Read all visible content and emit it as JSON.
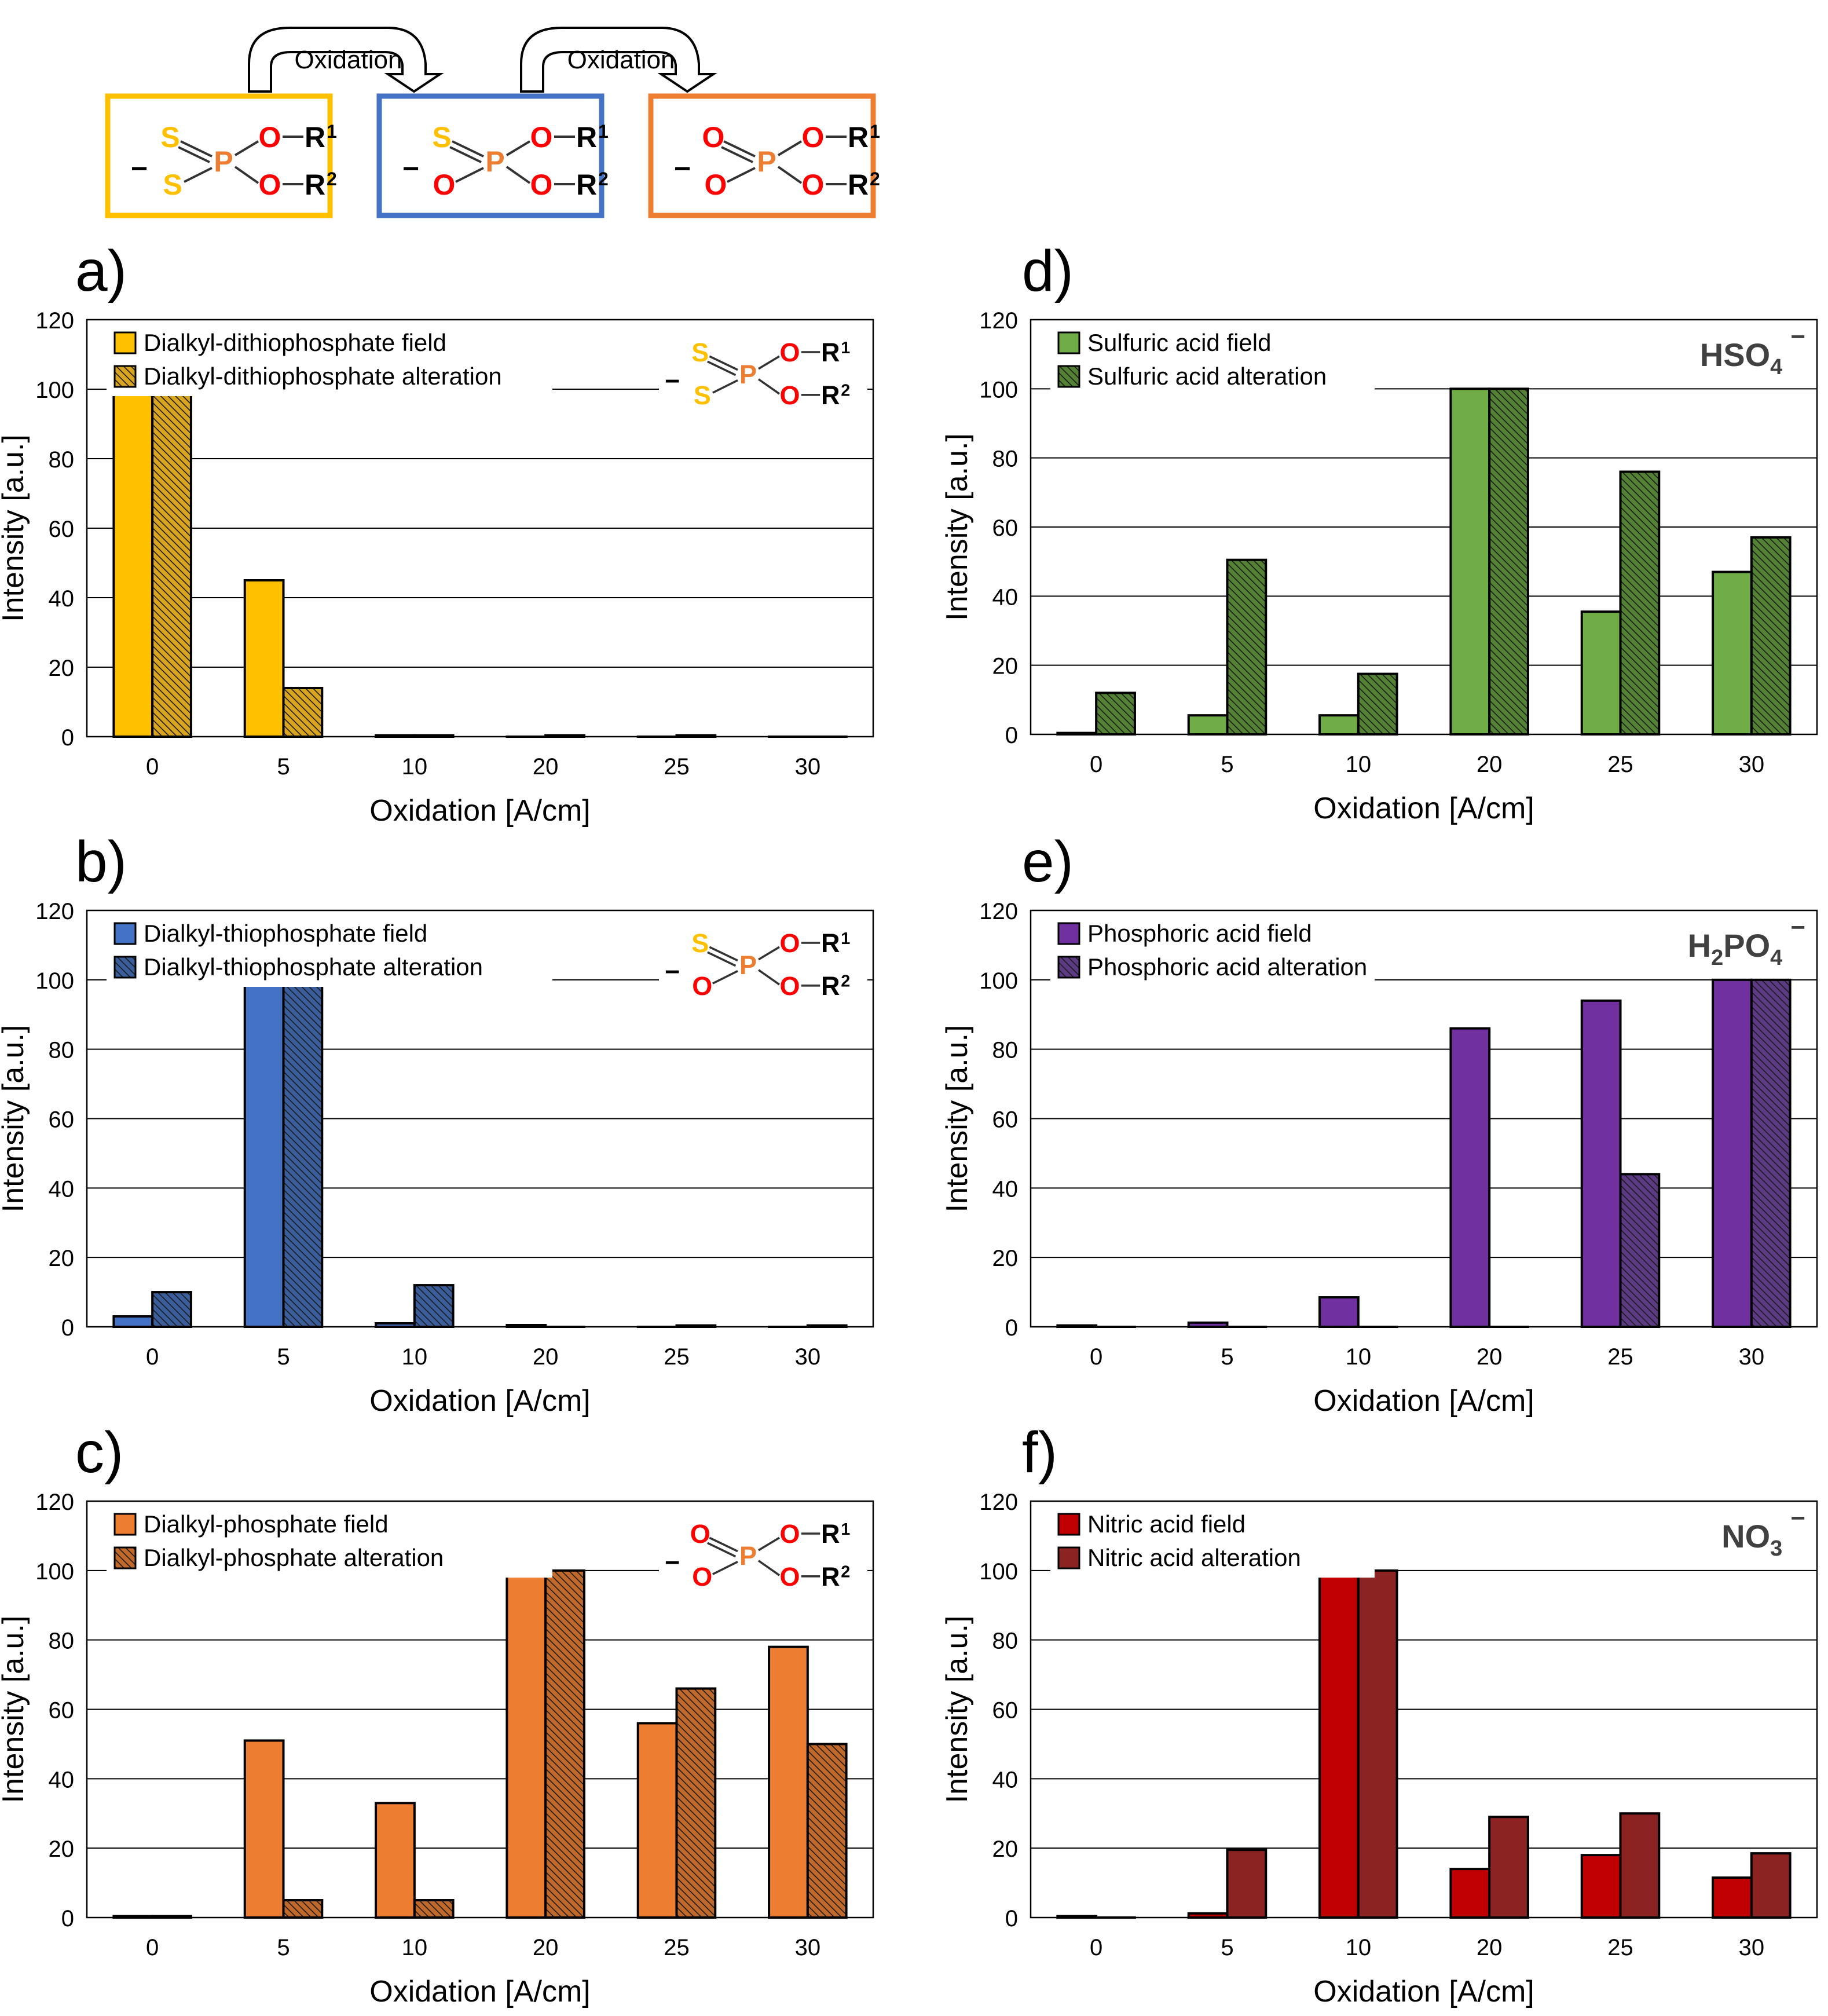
{
  "scheme": {
    "arrow_label_1": "Oxidation",
    "arrow_label_2": "Oxidation",
    "molecules": [
      {
        "border_color": "#FFC000",
        "top_atom": "S",
        "top_color": "#FFC000",
        "bottom_atom": "S",
        "bottom_color": "#FFC000",
        "charge": "−",
        "r1": "R",
        "r1_sup": "1",
        "r2": "R",
        "r2_sup": "2",
        "center": "P",
        "oxygen": "O"
      },
      {
        "border_color": "#4472C4",
        "top_atom": "S",
        "top_color": "#FFC000",
        "bottom_atom": "O",
        "bottom_color": "#FF0000",
        "charge": "−",
        "r1": "R",
        "r1_sup": "1",
        "r2": "R",
        "r2_sup": "2",
        "center": "P",
        "oxygen": "O"
      },
      {
        "border_color": "#ED7D31",
        "top_atom": "O",
        "top_color": "#FF0000",
        "bottom_atom": "O",
        "bottom_color": "#FF0000",
        "charge": "−",
        "r1": "R",
        "r1_sup": "1",
        "r2": "R",
        "r2_sup": "2",
        "center": "P",
        "oxygen": "O"
      }
    ]
  },
  "colors": {
    "phosphorus": "#ED7D31",
    "oxygen": "#FF0000",
    "sulfur": "#FFC000",
    "ion_label": "#404040"
  },
  "chart_data": [
    {
      "panel": "a)",
      "type": "bar",
      "categories": [
        "0",
        "5",
        "10",
        "20",
        "25",
        "30"
      ],
      "series": [
        {
          "name": "Dialkyl-dithiophosphate field",
          "values": [
            100,
            45,
            0.4,
            0,
            0,
            0
          ],
          "color": "#FFC000",
          "hatch": false
        },
        {
          "name": "Dialkyl-dithiophosphate alteration",
          "values": [
            100,
            14,
            0.4,
            0.4,
            0.4,
            0
          ],
          "color": "#D9A520",
          "hatch": true
        }
      ],
      "xlabel": "Oxidation [A/cm]",
      "ylabel": "Intensity [a.u.]",
      "ylim": [
        0,
        120
      ],
      "yticks": [
        "0",
        "20",
        "40",
        "60",
        "80",
        "100",
        "120"
      ],
      "inset": {
        "kind": "molecule",
        "molecule_index": 0
      }
    },
    {
      "panel": "b)",
      "type": "bar",
      "categories": [
        "0",
        "5",
        "10",
        "20",
        "25",
        "30"
      ],
      "series": [
        {
          "name": "Dialkyl-thiophosphate field",
          "values": [
            3,
            100,
            1,
            0.5,
            0,
            0
          ],
          "color": "#4472C4",
          "hatch": false
        },
        {
          "name": "Dialkyl-thiophosphate alteration",
          "values": [
            10,
            100,
            12,
            0,
            0.4,
            0.4
          ],
          "color": "#3A5E9C",
          "hatch": true
        }
      ],
      "xlabel": "Oxidation [A/cm]",
      "ylabel": "Intensity [a.u.]",
      "ylim": [
        0,
        120
      ],
      "yticks": [
        "0",
        "20",
        "40",
        "60",
        "80",
        "100",
        "120"
      ],
      "inset": {
        "kind": "molecule",
        "molecule_index": 1
      }
    },
    {
      "panel": "c)",
      "type": "bar",
      "categories": [
        "0",
        "5",
        "10",
        "20",
        "25",
        "30"
      ],
      "series": [
        {
          "name": "Dialkyl-phosphate field",
          "values": [
            0.4,
            51,
            33,
            100,
            56,
            78
          ],
          "color": "#ED7D31",
          "hatch": false
        },
        {
          "name": "Dialkyl-phosphate alteration",
          "values": [
            0.4,
            5,
            5,
            100,
            66,
            50
          ],
          "color": "#C0692A",
          "hatch": true
        }
      ],
      "xlabel": "Oxidation [A/cm]",
      "ylabel": "Intensity [a.u.]",
      "ylim": [
        0,
        120
      ],
      "yticks": [
        "0",
        "20",
        "40",
        "60",
        "80",
        "100",
        "120"
      ],
      "inset": {
        "kind": "molecule",
        "molecule_index": 2
      }
    },
    {
      "panel": "d)",
      "type": "bar",
      "categories": [
        "0",
        "5",
        "10",
        "20",
        "25",
        "30"
      ],
      "series": [
        {
          "name": "Sulfuric acid field",
          "values": [
            0.4,
            5.5,
            5.5,
            100,
            35.5,
            47
          ],
          "color": "#70AD47",
          "hatch": false
        },
        {
          "name": "Sulfuric acid alteration",
          "values": [
            12,
            50.5,
            17.5,
            100,
            76,
            57
          ],
          "color": "#548235",
          "hatch": true
        }
      ],
      "xlabel": "Oxidation [A/cm]",
      "ylabel": "Intensity [a.u.]",
      "ylim": [
        0,
        120
      ],
      "yticks": [
        "0",
        "20",
        "40",
        "60",
        "80",
        "100",
        "120"
      ],
      "inset": {
        "kind": "ion",
        "main": "HSO",
        "sub": "4",
        "sup": "−"
      }
    },
    {
      "panel": "e)",
      "type": "bar",
      "categories": [
        "0",
        "5",
        "10",
        "20",
        "25",
        "30"
      ],
      "series": [
        {
          "name": "Phosphoric acid field",
          "values": [
            0.4,
            1.2,
            8.5,
            86,
            94,
            100
          ],
          "color": "#7030A0",
          "hatch": false
        },
        {
          "name": "Phosphoric acid alteration",
          "values": [
            0,
            0,
            0,
            0,
            44,
            100
          ],
          "color": "#5C3A84",
          "hatch": true
        }
      ],
      "xlabel": "Oxidation [A/cm]",
      "ylabel": "Intensity [a.u.]",
      "ylim": [
        0,
        120
      ],
      "yticks": [
        "0",
        "20",
        "40",
        "60",
        "80",
        "100",
        "120"
      ],
      "inset": {
        "kind": "ion",
        "pre": "H",
        "pre_sub": "2",
        "main": "PO",
        "sub": "4",
        "sup": "−"
      }
    },
    {
      "panel": "f)",
      "type": "bar",
      "categories": [
        "0",
        "5",
        "10",
        "20",
        "25",
        "30"
      ],
      "series": [
        {
          "name": "Nitric acid field",
          "values": [
            0.4,
            1.2,
            100,
            14,
            18,
            11.5
          ],
          "color": "#C00000",
          "hatch": false
        },
        {
          "name": "Nitric acid alteration",
          "values": [
            0,
            19.5,
            100,
            29,
            30,
            18.5
          ],
          "color": "#8B2323",
          "hatch": false
        }
      ],
      "xlabel": "Oxidation [A/cm]",
      "ylabel": "Intensity [a.u.]",
      "ylim": [
        0,
        120
      ],
      "yticks": [
        "0",
        "20",
        "40",
        "60",
        "80",
        "100",
        "120"
      ],
      "inset": {
        "kind": "ion",
        "main": "NO",
        "sub": "3",
        "sup": "−"
      }
    }
  ]
}
